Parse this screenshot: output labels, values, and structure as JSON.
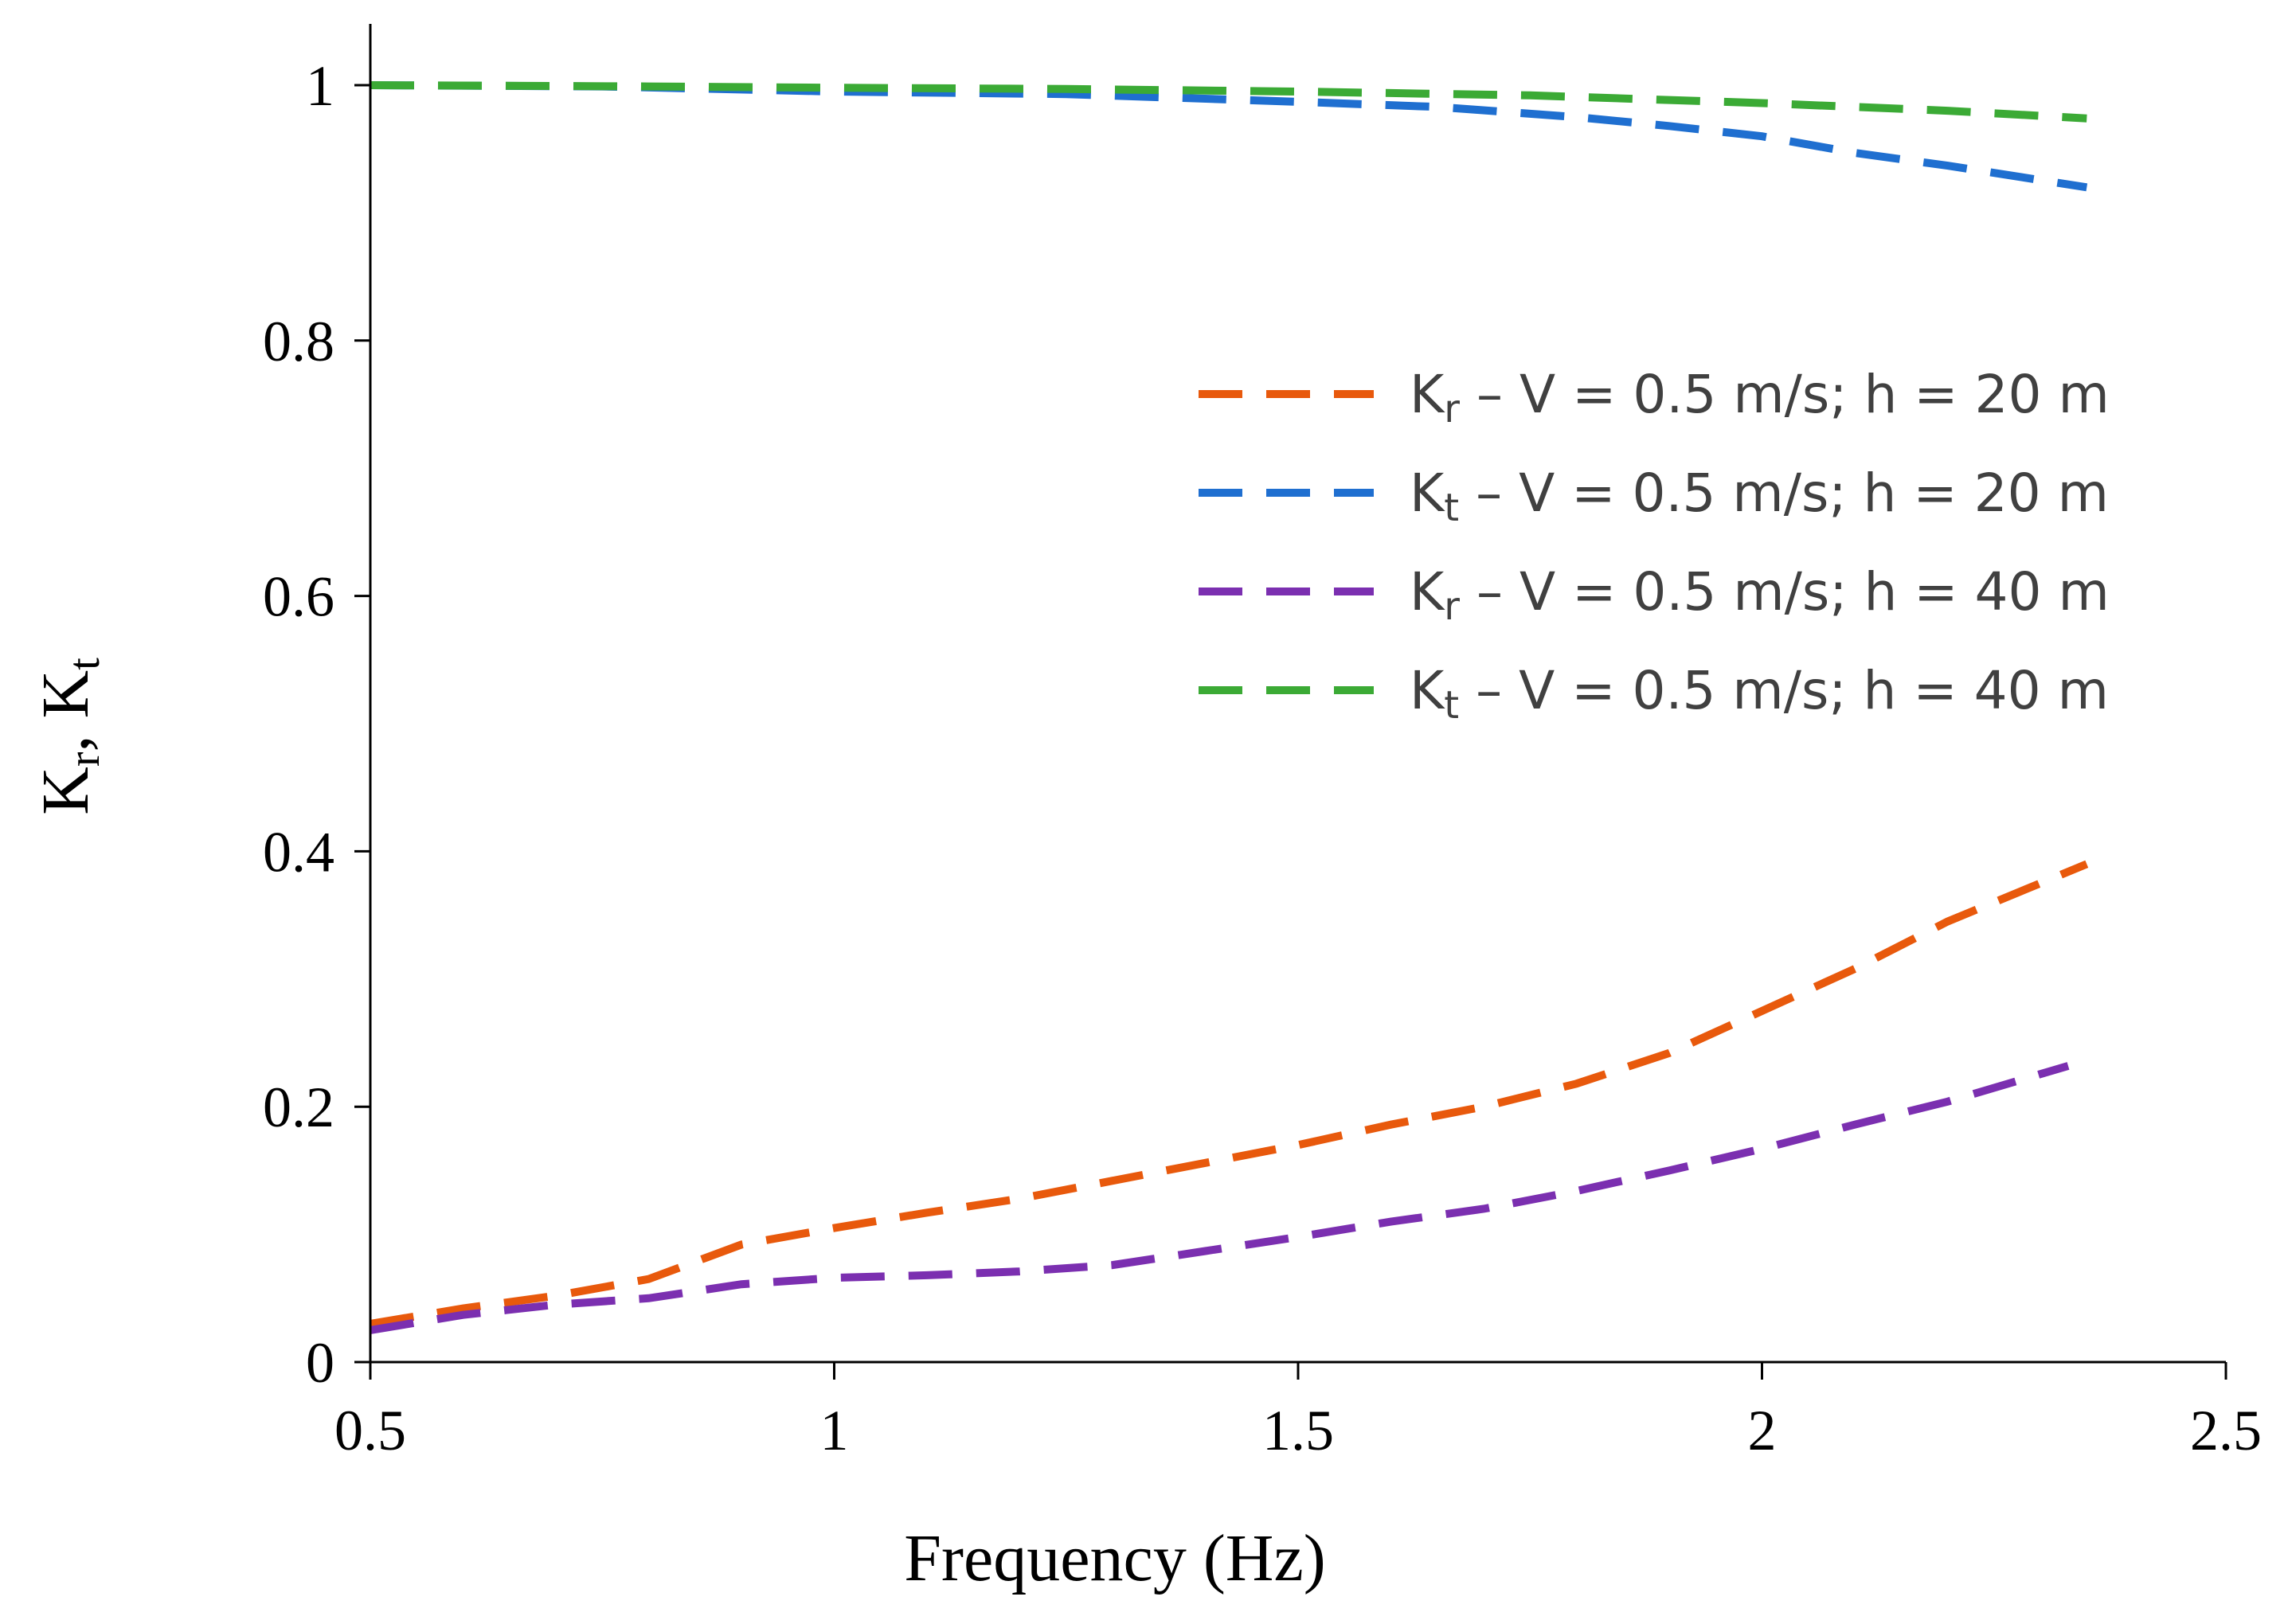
{
  "chart_data": {
    "type": "line",
    "title": "",
    "xlabel": "Frequency (Hz)",
    "ylabel_main": "K",
    "ylabel_sub1": "r",
    "ylabel_sep": ", ",
    "ylabel_sub2": "t",
    "xlim": [
      0.5,
      2.5
    ],
    "ylim": [
      0,
      1
    ],
    "xticks": [
      0.5,
      1,
      1.5,
      2,
      2.5
    ],
    "xtick_labels": [
      "0.5",
      "1",
      "1.5",
      "2",
      "2.5"
    ],
    "yticks": [
      0,
      0.2,
      0.4,
      0.6,
      0.8,
      1
    ],
    "ytick_labels": [
      "0",
      "0.2",
      "0.4",
      "0.6",
      "0.8",
      "1"
    ],
    "grid": false,
    "legend_position": "right",
    "series": [
      {
        "name": "Kr – V = 0.5 m/s; h = 20 m",
        "label_main": "K",
        "label_sub": "r",
        "label_rest": " – V = 0.5 m/s; h = 20 m",
        "color": "#E8590C",
        "x": [
          0.5,
          0.6,
          0.7,
          0.8,
          0.9,
          1.0,
          1.1,
          1.2,
          1.3,
          1.4,
          1.5,
          1.6,
          1.7,
          1.8,
          1.9,
          2.0,
          2.1,
          2.2,
          2.35
        ],
        "y": [
          0.03,
          0.042,
          0.052,
          0.065,
          0.092,
          0.105,
          0.117,
          0.128,
          0.142,
          0.156,
          0.17,
          0.186,
          0.2,
          0.218,
          0.242,
          0.275,
          0.308,
          0.345,
          0.39
        ]
      },
      {
        "name": "Kt – V = 0.5 m/s; h = 20 m",
        "label_main": "K",
        "label_sub": "t",
        "label_rest": " – V = 0.5 m/s; h = 20 m",
        "color": "#1F6FD0",
        "x": [
          0.5,
          0.75,
          1.0,
          1.25,
          1.5,
          1.65,
          1.8,
          1.9,
          2.0,
          2.1,
          2.2,
          2.35
        ],
        "y": [
          1.0,
          0.999,
          0.995,
          0.993,
          0.987,
          0.983,
          0.975,
          0.968,
          0.96,
          0.947,
          0.937,
          0.92
        ]
      },
      {
        "name": "Kr – V = 0.5 m/s; h = 40 m",
        "label_main": "K",
        "label_sub": "r",
        "label_rest": " – V = 0.5 m/s; h = 40 m",
        "color": "#7B2FB0",
        "x": [
          0.5,
          0.6,
          0.7,
          0.8,
          0.9,
          1.0,
          1.1,
          1.2,
          1.3,
          1.4,
          1.5,
          1.6,
          1.7,
          1.8,
          1.9,
          2.0,
          2.1,
          2.2,
          2.33
        ],
        "y": [
          0.025,
          0.037,
          0.045,
          0.05,
          0.061,
          0.066,
          0.068,
          0.071,
          0.076,
          0.087,
          0.098,
          0.11,
          0.12,
          0.134,
          0.15,
          0.167,
          0.186,
          0.204,
          0.232
        ]
      },
      {
        "name": "Kt – V = 0.5 m/s; h = 40 m",
        "label_main": "K",
        "label_sub": "t",
        "label_rest": " – V = 0.5 m/s; h = 40 m",
        "color": "#3BAA35",
        "x": [
          0.5,
          0.8,
          1.0,
          1.25,
          1.5,
          1.75,
          2.0,
          2.2,
          2.35
        ],
        "y": [
          1.0,
          0.999,
          0.998,
          0.997,
          0.995,
          0.992,
          0.986,
          0.98,
          0.974
        ]
      }
    ]
  }
}
